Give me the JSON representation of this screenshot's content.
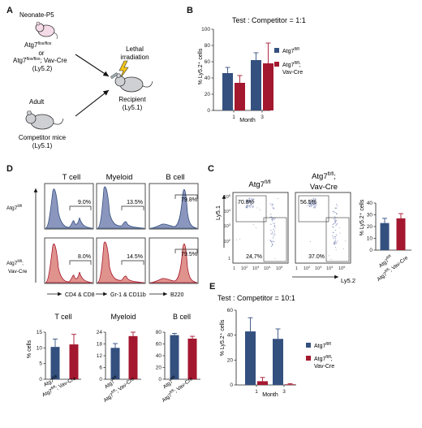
{
  "colors": {
    "blue": "#34507f",
    "red": "#a4182f",
    "blue_fill": "#8b96be",
    "red_fill": "#e0928c"
  },
  "panelA": {
    "label": "A",
    "donor_line1": "Neonate-P5",
    "donor_line2": "Atg7",
    "donor_line2_sup": "flox/flox",
    "donor_line3": "or",
    "donor_line4": "Atg7",
    "donor_line4_sup": "flox/flox",
    "donor_line4_rest": "; Vav-Cre",
    "donor_line5": "(Ly5.2)",
    "adult": "Adult",
    "competitor1": "Competitor mice",
    "competitor2": "(Ly5.1)",
    "irr1": "Lethal",
    "irr2": "irradiation",
    "recipient1": "Recipient",
    "recipient2": "(Ly5.1)"
  },
  "panelB": {
    "label": "B",
    "title": "Test : Competitor = 1:1",
    "ylabel": "% Ly5.2⁺ cells",
    "xlabel": "Month",
    "legend_wt": "Atg7",
    "legend_wt_sup": "fl/fl",
    "legend_ko1": "Atg7",
    "legend_ko1_sup": "fl/fl",
    "legend_ko1_rest": ";",
    "legend_ko2": "Vav-Cre"
  },
  "panelC": {
    "label": "C",
    "title_wt": "Atg7",
    "title_wt_sup": "fl/fl",
    "title_ko1": "Atg7",
    "title_ko1_sup": "fl/fl",
    "title_ko1_rest": ";",
    "title_ko2": "Vav-Cre",
    "ylabel": "Ly5.1",
    "xlabel": "Ly5.2",
    "wt_q1": "70.8%",
    "wt_q2": "24.7%",
    "ko_q1": "56.5%",
    "ko_q2": "37.0%",
    "bar_ylabel": "% Ly5.2⁺ cells",
    "xcat1": "Atg7",
    "xcat1_sup": "fl/fl",
    "xcat2": "Atg7",
    "xcat2_sup": "fl/fl",
    "xcat2_rest": "; Vav-Cre"
  },
  "panelD": {
    "label": "D",
    "col_tcell": "T cell",
    "col_myeloid": "Myeloid",
    "col_bcell": "B cell",
    "row_wt": "Atg7",
    "row_wt_sup": "fl/fl",
    "row_ko1": "Atg7",
    "row_ko1_sup": "fl/fl",
    "row_ko1_rest": ";",
    "row_ko2": "Vav-Cre",
    "wt_t": "9.0%",
    "wt_m": "13.5%",
    "wt_b": "79.8%",
    "ko_t": "8.0%",
    "ko_m": "14.5%",
    "ko_b": "79.5%",
    "ax_t": "CD4 & CD8",
    "ax_m": "Gr-1 & CD11b",
    "ax_b": "B220",
    "bar_ylabel": "% cells",
    "bar_t_title": "T cell",
    "bar_m_title": "Myeloid",
    "bar_b_title": "B cell",
    "xcat1": "Atg7",
    "xcat1_sup": "fl/fl",
    "xcat2": "Atg7",
    "xcat2_sup": "fl/fl",
    "xcat2_rest": "; Vav-Cre"
  },
  "panelE": {
    "label": "E",
    "title": "Test : Competitor = 10:1",
    "ylabel": "% Ly5.2⁺ cells",
    "xlabel": "Month",
    "legend_wt": "Atg7",
    "legend_wt_sup": "fl/fl",
    "legend_ko1": "Atg7",
    "legend_ko1_sup": "fl/fl",
    "legend_ko1_rest": ";",
    "legend_ko2": "Vav-Cre"
  },
  "chart_data": [
    {
      "id": "B",
      "type": "bar",
      "categories": [
        "1",
        "3"
      ],
      "series": [
        {
          "name": "Atg7fl/fl",
          "values": [
            46,
            62
          ],
          "errors": [
            7,
            9
          ]
        },
        {
          "name": "Atg7fl/fl; Vav-Cre",
          "values": [
            34,
            58
          ],
          "errors": [
            9,
            25
          ]
        }
      ],
      "ylim": [
        0,
        100
      ],
      "yticks": [
        "0",
        "20",
        "40",
        "60",
        "80",
        "100"
      ]
    },
    {
      "id": "C",
      "type": "bar",
      "categories": [
        "Atg7fl/fl",
        "Atg7fl/fl; Vav-Cre"
      ],
      "values": [
        23,
        27
      ],
      "errors": [
        4,
        4
      ],
      "ylim": [
        0,
        40
      ],
      "yticks": [
        "0",
        "10",
        "20",
        "30",
        "40"
      ]
    },
    {
      "id": "D-T",
      "type": "bar",
      "categories": [
        "Atg7fl/fl",
        "Atg7fl/fl; Vav-Cre"
      ],
      "values": [
        10.3,
        11.1
      ],
      "errors": [
        2.5,
        3.2
      ],
      "ylim": [
        0,
        15
      ],
      "yticks": [
        "0",
        "5",
        "10",
        "15"
      ]
    },
    {
      "id": "D-M",
      "type": "bar",
      "categories": [
        "Atg7fl/fl",
        "Atg7fl/fl; Vav-Cre"
      ],
      "values": [
        16,
        22
      ],
      "errors": [
        2.2,
        2
      ],
      "ylim": [
        0,
        24
      ],
      "yticks": [
        "0",
        "6",
        "12",
        "18",
        "24"
      ]
    },
    {
      "id": "D-B",
      "type": "bar",
      "categories": [
        "Atg7fl/fl",
        "Atg7fl/fl; Vav-Cre"
      ],
      "values": [
        75,
        69
      ],
      "errors": [
        3,
        4
      ],
      "ylim": [
        0,
        80
      ],
      "yticks": [
        "0",
        "20",
        "40",
        "60",
        "80"
      ]
    },
    {
      "id": "E",
      "type": "bar",
      "categories": [
        "1",
        "3"
      ],
      "series": [
        {
          "name": "Atg7fl/fl",
          "values": [
            43,
            37
          ],
          "errors": [
            11,
            8
          ]
        },
        {
          "name": "Atg7fl/fl; Vav-Cre",
          "values": [
            3,
            0.5
          ],
          "errors": [
            3,
            0.5
          ]
        }
      ],
      "ylim": [
        0,
        60
      ],
      "yticks": [
        "0",
        "20",
        "40",
        "60"
      ]
    }
  ]
}
